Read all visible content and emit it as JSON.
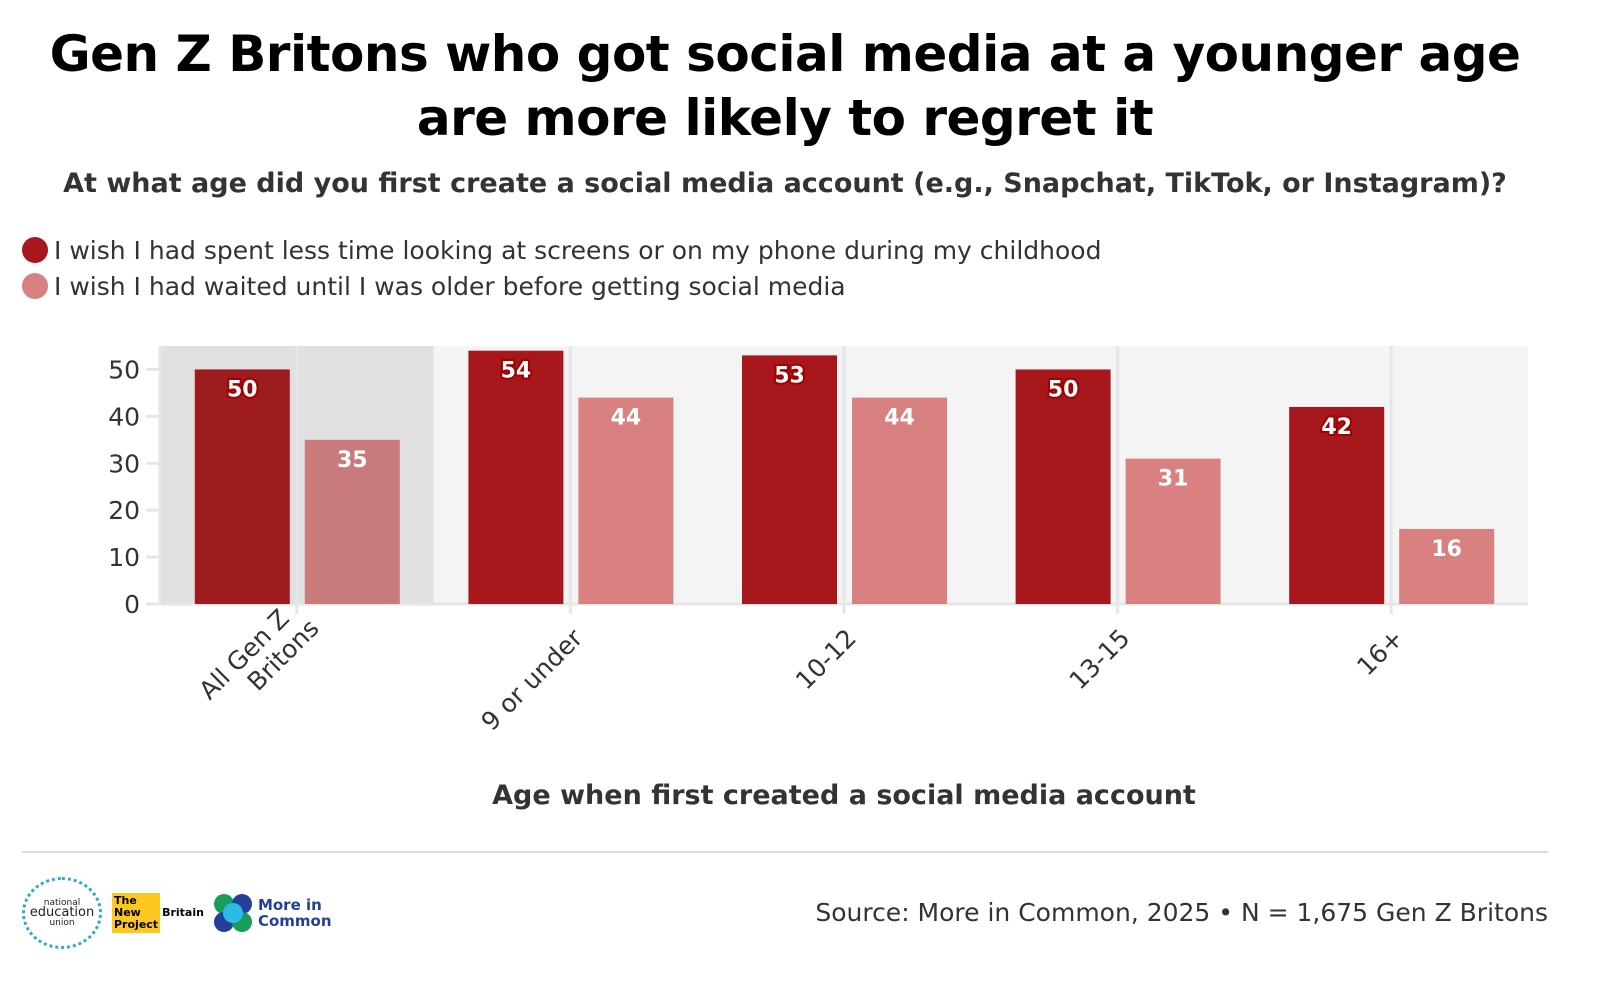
{
  "title": "Gen Z Britons who got social media at a younger age are more likely to regret it",
  "subtitle": "At what age did you first create a social media account (e.g., Snapchat, TikTok, or Instagram)?",
  "source": "Source: More in Common, 2025 • N = 1,675 Gen Z Britons",
  "logos": {
    "neu": "national education union",
    "nbp": "The New Britain Project",
    "mic": "More in Common"
  },
  "colors": {
    "series1": "#a8171b",
    "series2": "#d98080",
    "highlight_bg": "#e0e0e0",
    "plot_bg": "#f4f4f4"
  },
  "chart_data": {
    "type": "bar",
    "title": "Gen Z Britons who got social media at a younger age are more likely to regret it",
    "xlabel": "Age when first created a social media account",
    "ylabel": "",
    "ylim": [
      0,
      55
    ],
    "yticks": [
      0,
      10,
      20,
      30,
      40,
      50
    ],
    "grid": true,
    "legend": "top-left",
    "highlighted_category": "All Gen Z Britons",
    "categories": [
      "All Gen Z Britons",
      "9 or under",
      "10-12",
      "13-15",
      "16+"
    ],
    "category_lines": [
      [
        "All Gen Z",
        "Britons"
      ],
      [
        "9 or under"
      ],
      [
        "10-12"
      ],
      [
        "13-15"
      ],
      [
        "16+"
      ]
    ],
    "series": [
      {
        "name": "I wish I had spent less time looking at screens or on my phone during my childhood",
        "color": "#a8171b",
        "values": [
          50,
          54,
          53,
          50,
          42
        ]
      },
      {
        "name": "I wish I had waited until I was older before getting social media",
        "color": "#d98080",
        "values": [
          35,
          44,
          44,
          31,
          16
        ]
      }
    ]
  }
}
